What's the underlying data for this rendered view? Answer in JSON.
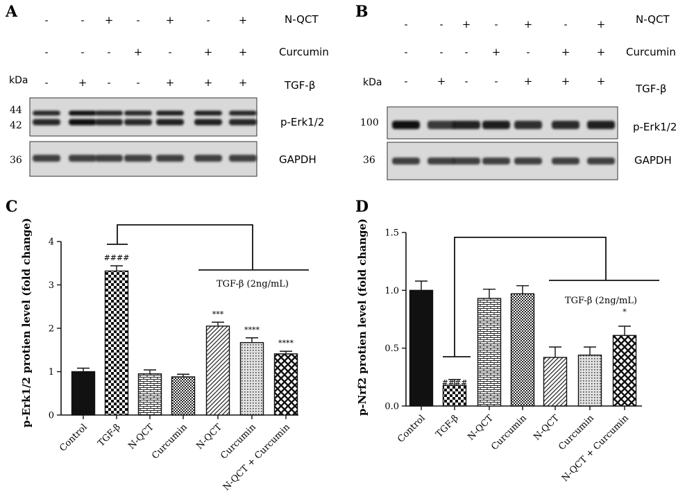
{
  "panels": {
    "A": "A",
    "B": "B",
    "C": "C",
    "D": "D"
  },
  "blot_A": {
    "rows": [
      {
        "label": "N-QCT",
        "signs": [
          "-",
          "-",
          "+",
          "-",
          "+",
          "-",
          "+"
        ]
      },
      {
        "label": "Curcumin",
        "signs": [
          "-",
          "-",
          "-",
          "+",
          "-",
          "+",
          "+"
        ]
      },
      {
        "label": "TGF-β",
        "signs": [
          "-",
          "+",
          "-",
          "-",
          "+",
          "+",
          "+"
        ]
      }
    ],
    "kda_label": "kDa",
    "mw_top": [
      "44",
      "42"
    ],
    "mw_bottom": "36",
    "band_top_label": "p-Erk1/2",
    "band_bottom_label": "GAPDH",
    "top_lane_intensity": [
      0.78,
      0.95,
      0.8,
      0.78,
      0.86,
      0.86,
      0.8
    ],
    "bottom_lane_intensity": [
      0.88,
      0.88,
      0.88,
      0.88,
      0.88,
      0.88,
      0.88
    ]
  },
  "blot_B": {
    "rows": [
      {
        "label": "N-QCT",
        "signs": [
          "-",
          "-",
          "+",
          "-",
          "+",
          "-",
          "+"
        ]
      },
      {
        "label": "Curcumin",
        "signs": [
          "-",
          "-",
          "-",
          "+",
          "-",
          "+",
          "+"
        ]
      },
      {
        "label": "TGF-β",
        "signs": [
          "-",
          "+",
          "-",
          "-",
          "+",
          "+",
          "+"
        ]
      }
    ],
    "kda_label": "kDa",
    "mw_top": "100",
    "mw_bottom": "36",
    "band_top_label": "p-Erk1/2",
    "band_bottom_label": "GAPDH",
    "top_lane_intensity": [
      0.95,
      0.6,
      0.85,
      0.9,
      0.72,
      0.75,
      0.88
    ],
    "bottom_lane_intensity": [
      0.88,
      0.88,
      0.88,
      0.88,
      0.88,
      0.88,
      0.88
    ]
  },
  "chart_data": [
    {
      "type": "bar",
      "panel": "C",
      "ylabel": "p-Erk1/2 protien level (fold change)",
      "ylim": [
        0,
        4
      ],
      "yticks": [
        "0",
        "1",
        "2",
        "3",
        "4"
      ],
      "categories": [
        "Control",
        "TGF-β",
        "N-QCT",
        "Curcumin",
        "N-QCT",
        "Curcumin",
        "N-QCT + Curcumin"
      ],
      "values": [
        1.0,
        3.32,
        0.95,
        0.88,
        2.05,
        1.67,
        1.41
      ],
      "errors": [
        0.08,
        0.12,
        0.09,
        0.06,
        0.09,
        0.11,
        0.06
      ],
      "patterns": [
        "solid",
        "check",
        "brick",
        "smallcheck",
        "diag",
        "dots",
        "cross"
      ],
      "significance": [
        "",
        "####",
        "",
        "",
        "***",
        "****",
        "****"
      ],
      "group_label": "TGF-β (2ng/mL)"
    },
    {
      "type": "bar",
      "panel": "D",
      "ylabel": "p-Nrf2 protien level (fold change)",
      "ylim": [
        0,
        1.5
      ],
      "yticks": [
        "0.0",
        "0.5",
        "1.0",
        "1.5"
      ],
      "categories": [
        "Control",
        "TGF-β",
        "N-QCT",
        "Curcumin",
        "N-QCT",
        "Curcumin",
        "N-QCT + Curcumin"
      ],
      "values": [
        1.0,
        0.18,
        0.93,
        0.97,
        0.42,
        0.44,
        0.61
      ],
      "errors": [
        0.08,
        0.05,
        0.08,
        0.07,
        0.09,
        0.07,
        0.08
      ],
      "patterns": [
        "solid",
        "check",
        "brick",
        "smallcheck",
        "diag",
        "dots",
        "cross"
      ],
      "significance": [
        "",
        "####",
        "",
        "",
        "",
        "",
        "*"
      ],
      "group_label": "TGF-β (2ng/mL)"
    }
  ]
}
